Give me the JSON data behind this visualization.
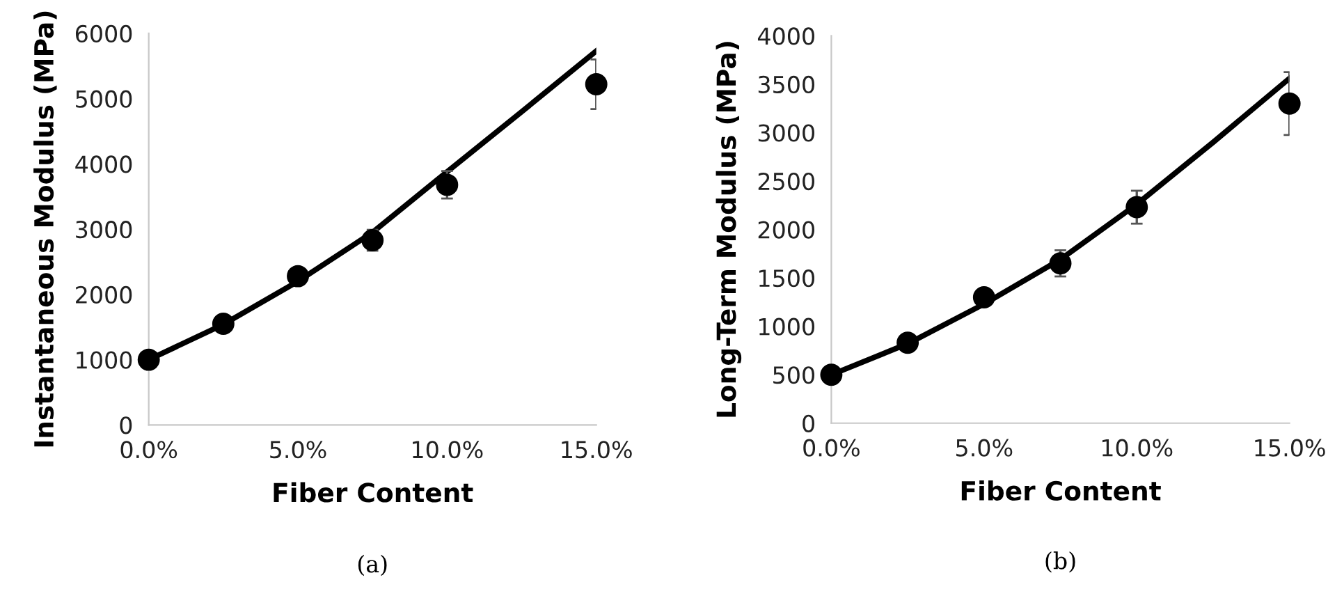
{
  "chart_data": [
    {
      "type": "scatter",
      "xlabel": "Fiber Content",
      "ylabel": "Instantaneous Modulus (MPa)",
      "annotations": [
        "(a)"
      ],
      "xlim": [
        0,
        15
      ],
      "xticks": [
        {
          "value": 0,
          "label": "0.0%"
        },
        {
          "value": 5,
          "label": "5.0%"
        },
        {
          "value": 10,
          "label": "10.0%"
        },
        {
          "value": 15,
          "label": "15.0%"
        }
      ],
      "ylim": [
        0,
        6000
      ],
      "yticks": [
        0,
        1000,
        2000,
        3000,
        4000,
        5000,
        6000
      ],
      "grid": false,
      "legend": false,
      "series": [
        {
          "type": "line",
          "color": "#000000",
          "x": [
            0,
            2.5,
            5,
            7.5,
            10,
            12.5,
            15
          ],
          "values": [
            1000,
            1540,
            2200,
            2950,
            3880,
            4800,
            5730
          ],
          "marker": "none",
          "line_style": "solid"
        },
        {
          "color": "#000000",
          "x": [
            0,
            2.5,
            5,
            7.5,
            10,
            15
          ],
          "values": [
            1000,
            1550,
            2280,
            2830,
            3680,
            5220
          ],
          "errors": [
            null,
            null,
            null,
            160,
            210,
            380
          ],
          "marker": "circle"
        }
      ]
    },
    {
      "type": "scatter",
      "xlabel": "Fiber Content",
      "ylabel": "Long-Term Modulus (MPa)",
      "annotations": [
        "(b)"
      ],
      "xlim": [
        0,
        15
      ],
      "xticks": [
        {
          "value": 0,
          "label": "0.0%"
        },
        {
          "value": 5,
          "label": "5.0%"
        },
        {
          "value": 10,
          "label": "10.0%"
        },
        {
          "value": 15,
          "label": "15.0%"
        }
      ],
      "ylim": [
        0,
        4000
      ],
      "yticks": [
        0,
        500,
        1000,
        1500,
        2000,
        2500,
        3000,
        3500,
        4000
      ],
      "grid": false,
      "legend": false,
      "series": [
        {
          "type": "line",
          "color": "#000000",
          "x": [
            0,
            2.5,
            5,
            7.5,
            10,
            12.5,
            15
          ],
          "values": [
            500,
            820,
            1230,
            1690,
            2260,
            2900,
            3560
          ],
          "marker": "none",
          "line_style": "solid"
        },
        {
          "color": "#000000",
          "x": [
            0,
            2.5,
            5,
            7.5,
            10,
            15
          ],
          "values": [
            500,
            830,
            1300,
            1650,
            2230,
            3300
          ],
          "errors": [
            null,
            null,
            null,
            135,
            170,
            325
          ],
          "marker": "circle"
        }
      ]
    }
  ]
}
